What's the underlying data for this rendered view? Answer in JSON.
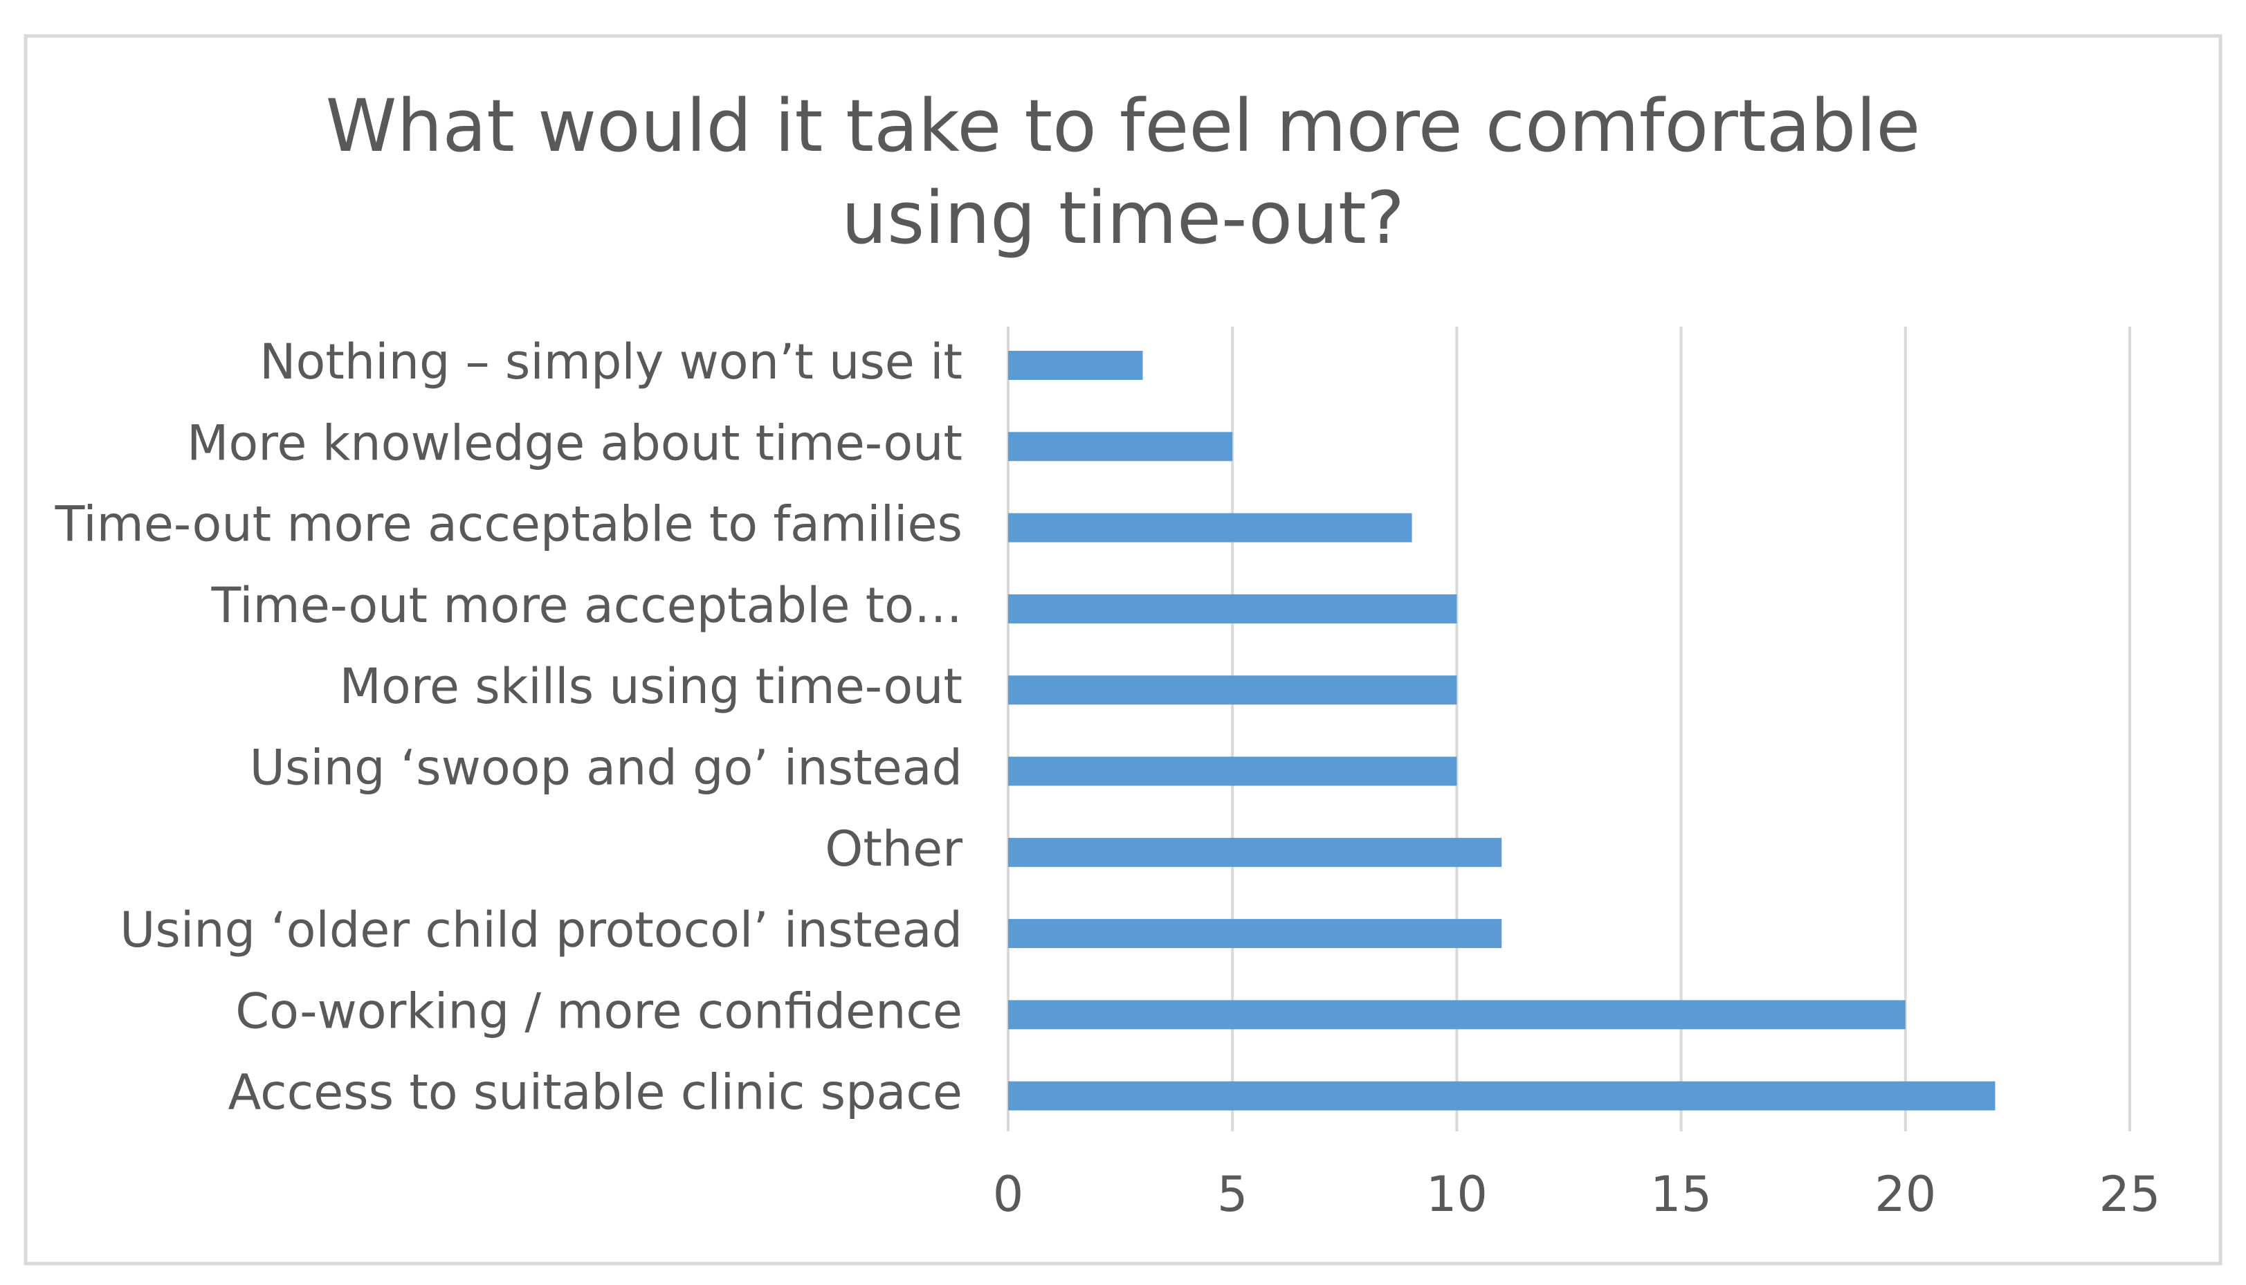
{
  "chart_data": {
    "type": "bar",
    "orientation": "horizontal",
    "title": "What would it take to feel more comfortable using time-out?",
    "categories": [
      "Nothing – simply won’t use it",
      "More knowledge about time-out",
      "Time-out more acceptable to families",
      "Time-out more acceptable to…",
      "More skills using time-out",
      "Using ‘swoop and go’ instead",
      "Other",
      "Using ‘older child protocol’ instead",
      "Co-working / more confidence",
      "Access to suitable clinic space"
    ],
    "values": [
      3,
      5,
      9,
      10,
      10,
      10,
      11,
      11,
      20,
      22
    ],
    "color": "#5b9bd5",
    "xlim": [
      0,
      25
    ],
    "xticks": [
      0,
      5,
      10,
      15,
      20,
      25
    ],
    "grid": true
  }
}
